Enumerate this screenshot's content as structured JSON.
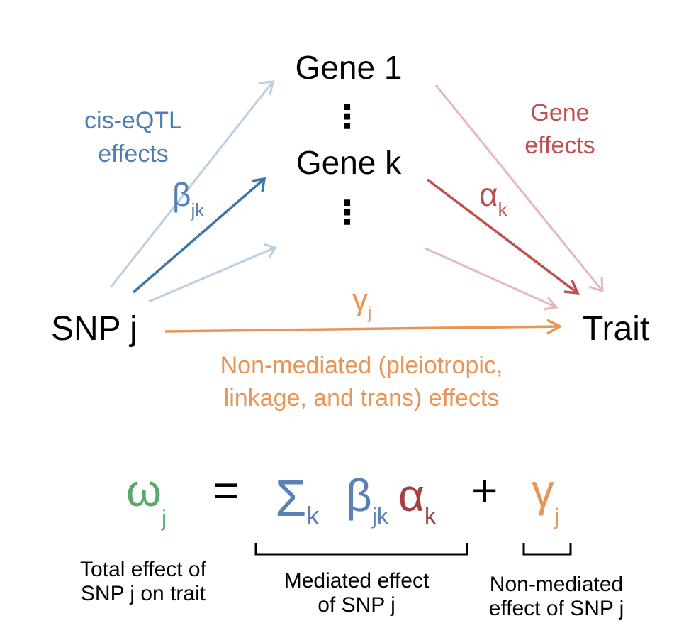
{
  "nodes": {
    "gene1": "Gene 1",
    "genek": "Gene k",
    "snp": "SNP j",
    "trait": "Trait",
    "ellipsis": "⋮"
  },
  "labels": {
    "cis_line1": "cis-eQTL",
    "cis_line2": "effects",
    "gene_effects_line1": "Gene",
    "gene_effects_line2": "effects",
    "beta": "β",
    "beta_sub": "jk",
    "alpha": "α",
    "alpha_sub": "k",
    "gamma": "γ",
    "gamma_sub": "j",
    "nonmed_line1": "Non-mediated (pleiotropic,",
    "nonmed_line2": "linkage, and trans) effects"
  },
  "equation": {
    "omega": "ω",
    "omega_sub": "j",
    "equals": "=",
    "sigma": "Σ",
    "sigma_sub": "k",
    "beta": "β",
    "beta_sub": "jk",
    "alpha": "α",
    "alpha_sub": "k",
    "plus": "+",
    "gamma": "γ",
    "gamma_sub": "j"
  },
  "captions": {
    "total_line1": "Total effect of",
    "total_line2": "SNP j on trait",
    "mediated_line1": "Mediated effect",
    "mediated_line2": "of SNP j",
    "nonmediated_line1": "Non-mediated",
    "nonmediated_line2": "effect of SNP j"
  },
  "colors": {
    "cis_light": "#b9cfe3",
    "cis_dark": "#3b76a8",
    "cis_text": "#4f7fb0",
    "beta": "#5a80b8",
    "gene_light": "#e6b8b8",
    "gene_dark": "#c0504d",
    "gene_text": "#c0504d",
    "gamma": "#e8955a",
    "omega": "#5aa86a",
    "text": "#000000"
  }
}
